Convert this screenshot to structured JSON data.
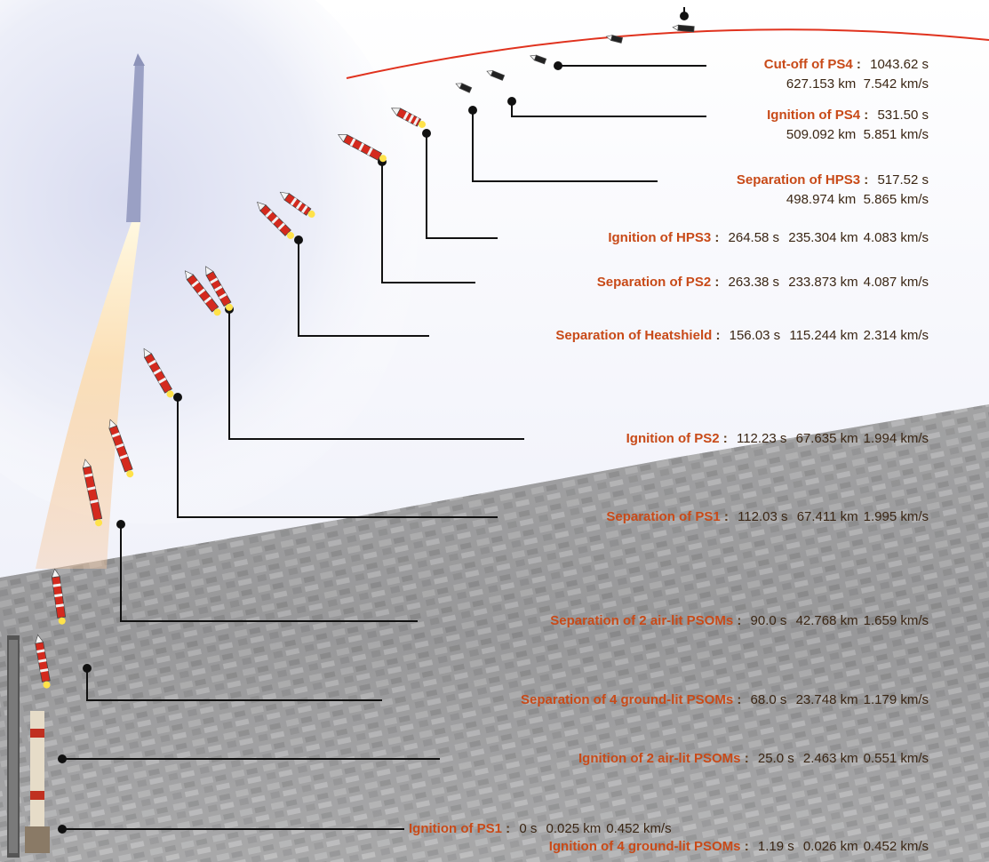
{
  "events": [
    {
      "label": "Cut-off of  PS4",
      "time": "1043.62 s",
      "alt": "627.153 km",
      "vel": "7.542 km/s"
    },
    {
      "label": "Ignition of  PS4",
      "time": "531.50 s",
      "alt": "509.092 km",
      "vel": "5.851 km/s"
    },
    {
      "label": "Separation of  HPS3",
      "time": "517.52 s",
      "alt": "498.974 km",
      "vel": "5.865 km/s"
    },
    {
      "label": "Ignition of  HPS3",
      "time": "264.58 s",
      "alt": "235.304 km",
      "vel": "4.083 km/s"
    },
    {
      "label": "Separation of  PS2",
      "time": "263.38 s",
      "alt": "233.873 km",
      "vel": "4.087 km/s"
    },
    {
      "label": "Separation of  Heatshield",
      "time": "156.03 s",
      "alt": "115.244 km",
      "vel": "2.314 km/s"
    },
    {
      "label": "Ignition of  PS2",
      "time": "112.23 s",
      "alt": "67.635 km",
      "vel": "1.994 km/s"
    },
    {
      "label": "Separation of  PS1",
      "time": "112.03 s",
      "alt": "67.411 km",
      "vel": "1.995 km/s"
    },
    {
      "label": "Separation of 2 air-lit PSOMs",
      "time": "90.0 s",
      "alt": "42.768 km",
      "vel": "1.659 km/s"
    },
    {
      "label": "Separation of 4 ground-lit PSOMs",
      "time": "68.0 s",
      "alt": "23.748 km",
      "vel": "1.179 km/s"
    },
    {
      "label": "Ignition of 2 air-lit PSOMs",
      "time": "25.0 s",
      "alt": "2.463 km",
      "vel": "0.551 km/s"
    },
    {
      "label": "Ignition of PS1",
      "time": "0 s",
      "alt": "0.025 km",
      "vel": "0.452 km/s"
    },
    {
      "label": "Ignition of 4 ground-lit PSOMs",
      "time": "1.19 s",
      "alt": "0.026 km",
      "vel": "0.452 km/s"
    }
  ],
  "colors": {
    "label": "#c84a18",
    "value": "#3a2614",
    "leader": "#111111",
    "orbit": "#e0321e",
    "stage_red": "#d42a1e",
    "sky": "#eef0f8",
    "ground": "#9a9a9a"
  }
}
